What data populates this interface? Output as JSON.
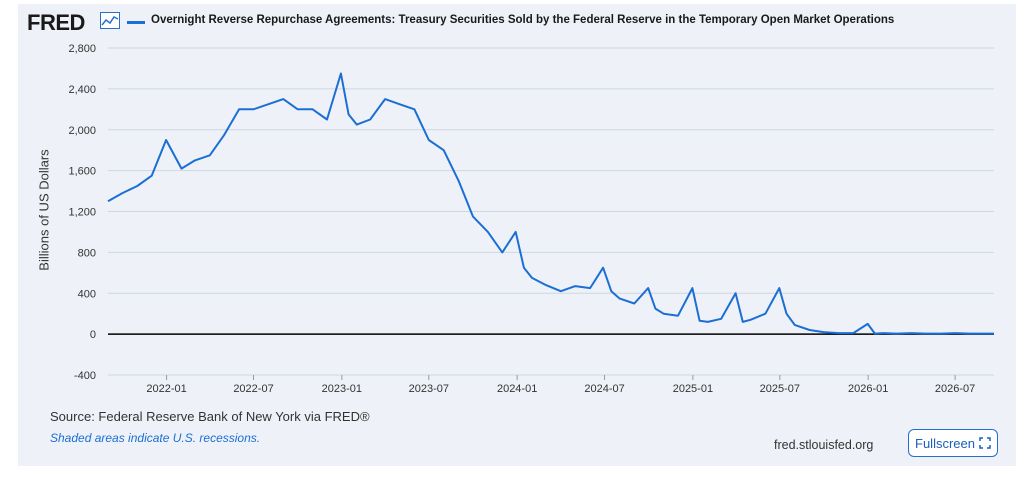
{
  "header": {
    "logo_text": "FRED",
    "logo_icon": "line-chart-icon",
    "series_title": "Overnight Reverse Repurchase Agreements: Treasury Securities Sold by the Federal Reserve in the Temporary Open Market Operations"
  },
  "footer": {
    "source": "Source: Federal Reserve Bank of New York via FRED®",
    "note": "Shaded areas indicate U.S. recessions.",
    "site": "fred.stlouisfed.org",
    "fullscreen_label": "Fullscreen",
    "fullscreen_icon": "expand-icon"
  },
  "colors": {
    "series": "#1b6fd4",
    "accent": "#2a6ecb",
    "background": "#eef2f8"
  },
  "chart_data": {
    "type": "line",
    "title": "Overnight Reverse Repurchase Agreements: Treasury Securities Sold by the Federal Reserve in the Temporary Open Market Operations",
    "xlabel": "",
    "ylabel": "Billions of US Dollars",
    "ylim": [
      -400,
      2800
    ],
    "yticks": [
      "2,800",
      "2,400",
      "2,000",
      "1,600",
      "1,200",
      "800",
      "400",
      "0",
      "-400"
    ],
    "ytick_values": [
      2800,
      2400,
      2000,
      1600,
      1200,
      800,
      400,
      0,
      -400
    ],
    "xlim": [
      "2021-09-01",
      "2026-09-20"
    ],
    "xticks": [
      "2022-01",
      "2022-07",
      "2023-01",
      "2023-07",
      "2024-01",
      "2024-07",
      "2025-01",
      "2025-07",
      "2026-01",
      "2026-07"
    ],
    "grid": true,
    "series": [
      {
        "name": "Overnight Reverse Repurchase Agreements",
        "x": [
          "2021-09-01",
          "2021-10-01",
          "2021-11-01",
          "2021-12-01",
          "2021-12-31",
          "2022-02-01",
          "2022-03-01",
          "2022-04-01",
          "2022-05-01",
          "2022-06-01",
          "2022-07-01",
          "2022-08-01",
          "2022-09-01",
          "2022-10-01",
          "2022-11-01",
          "2022-12-01",
          "2022-12-30",
          "2023-01-15",
          "2023-02-01",
          "2023-03-01",
          "2023-04-01",
          "2023-05-01",
          "2023-06-01",
          "2023-07-01",
          "2023-08-01",
          "2023-09-01",
          "2023-10-01",
          "2023-11-01",
          "2023-12-01",
          "2023-12-29",
          "2024-01-15",
          "2024-02-01",
          "2024-03-01",
          "2024-04-01",
          "2024-05-01",
          "2024-06-01",
          "2024-06-28",
          "2024-07-15",
          "2024-08-01",
          "2024-09-01",
          "2024-09-30",
          "2024-10-15",
          "2024-11-01",
          "2024-12-01",
          "2024-12-31",
          "2025-01-15",
          "2025-02-01",
          "2025-03-01",
          "2025-03-31",
          "2025-04-15",
          "2025-05-01",
          "2025-06-01",
          "2025-06-30",
          "2025-07-15",
          "2025-08-01",
          "2025-09-01",
          "2025-09-30",
          "2025-10-15",
          "2025-11-01",
          "2025-12-01",
          "2025-12-31",
          "2026-01-15",
          "2026-02-01",
          "2026-03-01",
          "2026-04-01",
          "2026-05-01",
          "2026-06-01",
          "2026-07-01",
          "2026-08-01",
          "2026-09-20"
        ],
        "values": [
          1300,
          1380,
          1450,
          1550,
          1900,
          1620,
          1700,
          1750,
          1950,
          2200,
          2200,
          2250,
          2300,
          2200,
          2200,
          2100,
          2550,
          2150,
          2050,
          2100,
          2300,
          2250,
          2200,
          1900,
          1800,
          1500,
          1150,
          1000,
          800,
          1000,
          650,
          550,
          480,
          420,
          470,
          450,
          650,
          420,
          350,
          300,
          450,
          250,
          200,
          180,
          450,
          130,
          120,
          150,
          400,
          120,
          140,
          200,
          450,
          200,
          90,
          40,
          20,
          15,
          10,
          10,
          100,
          5,
          10,
          5,
          10,
          5,
          5,
          10,
          5,
          5
        ]
      }
    ]
  }
}
